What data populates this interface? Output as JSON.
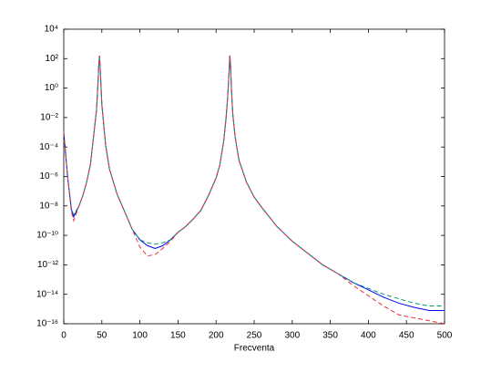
{
  "chart_data": {
    "type": "line",
    "xlabel": "Frecventa",
    "x": [
      0,
      5,
      10,
      13,
      20,
      25,
      30,
      35,
      40,
      43,
      45,
      46,
      47,
      48,
      50,
      55,
      60,
      70,
      80,
      90,
      100,
      110,
      120,
      130,
      140,
      150,
      160,
      170,
      180,
      190,
      200,
      205,
      210,
      213,
      215,
      217,
      218,
      219,
      220,
      222,
      225,
      230,
      240,
      250,
      260,
      280,
      300,
      320,
      340,
      360,
      380,
      400,
      420,
      440,
      460,
      480,
      500
    ],
    "series": [
      {
        "color": "#0000ff",
        "linestyle": "-",
        "values": [
          0.001,
          1e-06,
          6.3e-09,
          1.8e-09,
          1e-08,
          5e-08,
          4e-07,
          6.3e-06,
          0.0013,
          0.032,
          2.5,
          40,
          160,
          16,
          0.079,
          0.00013,
          3.2e-06,
          6.3e-08,
          4e-09,
          2.5e-10,
          5e-11,
          2e-11,
          1.3e-11,
          2e-11,
          5e-11,
          1.6e-10,
          4e-10,
          1.3e-09,
          5e-09,
          5e-08,
          7.9e-07,
          6.3e-06,
          0.00025,
          0.0079,
          0.16,
          10,
          160,
          40,
          1.3,
          0.016,
          0.0005,
          1.3e-05,
          4e-07,
          4e-08,
          7.9e-09,
          4e-10,
          4e-11,
          6.3e-12,
          1e-12,
          2.5e-13,
          6.3e-14,
          2e-14,
          6.3e-15,
          2.5e-15,
          1.3e-15,
          7.9e-16,
          7.9e-16
        ]
      },
      {
        "color": "#009a7a",
        "linestyle": "--",
        "values": [
          0.001,
          1e-06,
          6.3e-09,
          2.5e-09,
          1e-08,
          5e-08,
          4e-07,
          6.3e-06,
          0.0013,
          0.032,
          2.5,
          40,
          160,
          16,
          0.079,
          0.00013,
          3.2e-06,
          6.3e-08,
          4e-09,
          2.5e-10,
          5e-11,
          3.2e-11,
          2.5e-11,
          3.2e-11,
          5e-11,
          1.6e-10,
          4e-10,
          1.3e-09,
          5e-09,
          5e-08,
          7.9e-07,
          6.3e-06,
          0.00025,
          0.0079,
          0.16,
          10,
          160,
          40,
          1.3,
          0.016,
          0.0005,
          1.3e-05,
          4e-07,
          4e-08,
          7.9e-09,
          4e-10,
          4e-11,
          6.3e-12,
          1e-12,
          2.5e-13,
          6.3e-14,
          2.5e-14,
          1e-14,
          5e-15,
          2.5e-15,
          1.6e-15,
          1.6e-15
        ]
      },
      {
        "color": "#e8303a",
        "linestyle": "--",
        "values": [
          0.001,
          1e-06,
          4e-09,
          1e-09,
          1e-08,
          5e-08,
          4e-07,
          6.3e-06,
          0.0013,
          0.032,
          2.5,
          40,
          160,
          16,
          0.079,
          0.00013,
          3.2e-06,
          6.3e-08,
          4e-09,
          2.5e-10,
          1.6e-11,
          4e-12,
          5e-12,
          1.3e-11,
          4e-11,
          1.6e-10,
          4e-10,
          1.3e-09,
          5e-09,
          5e-08,
          7.9e-07,
          6.3e-06,
          0.00025,
          0.0079,
          0.16,
          10,
          160,
          40,
          1.3,
          0.016,
          0.0005,
          1.3e-05,
          4e-07,
          4e-08,
          7.9e-09,
          4e-10,
          4e-11,
          6.3e-12,
          1e-12,
          2.5e-13,
          4e-14,
          7.9e-15,
          1.6e-15,
          4e-16,
          2.5e-16,
          1.6e-16,
          1e-16
        ]
      }
    ],
    "xlim": [
      0,
      500
    ],
    "xticks": [
      0,
      50,
      100,
      150,
      200,
      250,
      300,
      350,
      400,
      450,
      500
    ],
    "ylim": [
      1e-16,
      10000
    ],
    "yscale": "log",
    "yticks": [
      {
        "value": 10000,
        "label": "10⁴"
      },
      {
        "value": 100,
        "label": "10²"
      },
      {
        "value": 1,
        "label": "10⁰"
      },
      {
        "value": 0.01,
        "label": "10⁻²"
      },
      {
        "value": 0.0001,
        "label": "10⁻⁴"
      },
      {
        "value": 1e-06,
        "label": "10⁻⁶"
      },
      {
        "value": 1e-08,
        "label": "10⁻⁸"
      },
      {
        "value": 1e-10,
        "label": "10⁻¹⁰"
      },
      {
        "value": 1e-12,
        "label": "10⁻¹²"
      },
      {
        "value": 1e-14,
        "label": "10⁻¹⁴"
      },
      {
        "value": 1e-16,
        "label": "10⁻¹⁶"
      }
    ],
    "grid": false
  }
}
